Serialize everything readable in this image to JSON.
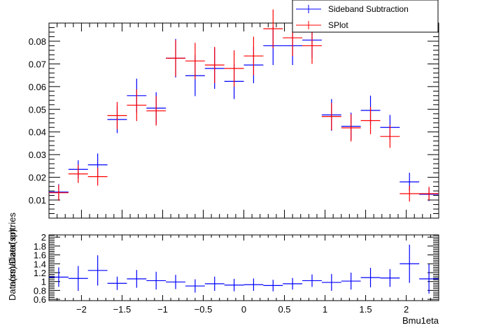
{
  "chart_data": [
    {
      "type": "scatter",
      "style": "error-bar histogram",
      "xlabel": "",
      "ylabel": "normalized entries",
      "xlim": [
        -2.4,
        2.4
      ],
      "ylim": [
        0.002,
        0.088
      ],
      "yticks_major": [
        0.01,
        0.02,
        0.03,
        0.04,
        0.05,
        0.06,
        0.07,
        0.08
      ],
      "ytick_labels": [
        "0.01",
        "0.02",
        "0.03",
        "0.04",
        "0.05",
        "0.06",
        "0.07",
        "0.08"
      ],
      "grid": false,
      "legend": {
        "placement": "top-right",
        "entries": [
          "Sideband Subtraction",
          "SPlot"
        ]
      },
      "bin_edges": [
        -2.4,
        -2.16,
        -1.92,
        -1.68,
        -1.44,
        -1.2,
        -0.96,
        -0.72,
        -0.48,
        -0.24,
        0.0,
        0.24,
        0.48,
        0.72,
        0.96,
        1.2,
        1.44,
        1.68,
        1.92,
        2.16,
        2.4
      ],
      "series": [
        {
          "name": "Sideband Subtraction",
          "color": "#0000ff",
          "values": [
            0.0135,
            0.0235,
            0.0255,
            0.0455,
            0.056,
            0.0505,
            0.0725,
            0.0648,
            0.068,
            0.0623,
            0.0695,
            0.078,
            0.078,
            0.0805,
            0.0475,
            0.0425,
            0.0495,
            0.042,
            0.018,
            0.0125
          ],
          "errors": [
            0.0035,
            0.004,
            0.005,
            0.006,
            0.0075,
            0.007,
            0.0085,
            0.009,
            0.009,
            0.0078,
            0.008,
            0.0085,
            0.0085,
            0.008,
            0.007,
            0.006,
            0.0065,
            0.0055,
            0.004,
            0.003
          ]
        },
        {
          "name": "SPlot",
          "color": "#ff0000",
          "values": [
            0.0132,
            0.0215,
            0.0203,
            0.0472,
            0.0518,
            0.0493,
            0.0725,
            0.0713,
            0.0695,
            0.068,
            0.0735,
            0.0855,
            0.0815,
            0.078,
            0.0468,
            0.0418,
            0.045,
            0.038,
            0.0128,
            0.0128
          ],
          "errors": [
            0.0035,
            0.004,
            0.004,
            0.006,
            0.007,
            0.0065,
            0.008,
            0.008,
            0.008,
            0.008,
            0.0085,
            0.0085,
            0.008,
            0.008,
            0.006,
            0.006,
            0.006,
            0.005,
            0.0035,
            0.003
          ]
        }
      ]
    },
    {
      "type": "scatter",
      "style": "error-bar ratio",
      "xlabel": "Bmu1eta",
      "ylabel": "Data(ss)/Data(sp)",
      "xlim": [
        -2.4,
        2.4
      ],
      "ylim": [
        0.57,
        2.05
      ],
      "xticks_major": [
        -2,
        -1.5,
        -1,
        -0.5,
        0,
        0.5,
        1,
        1.5,
        2
      ],
      "xtick_labels": [
        "−2",
        "−1.5",
        "−1",
        "−0.5",
        "0",
        "0.5",
        "1",
        "1.5",
        "2"
      ],
      "yticks_major": [
        0.6,
        0.8,
        1,
        1.2,
        1.4,
        1.6,
        1.8,
        2
      ],
      "ytick_labels": [
        "0.6",
        "0.8",
        "1",
        "1.2",
        "1.4",
        "1.6",
        "1.8",
        "2"
      ],
      "grid": false,
      "series": [
        {
          "name": "",
          "color": "#0000ff",
          "values": [
            1.1,
            1.07,
            1.25,
            0.96,
            1.06,
            1.02,
            0.99,
            0.9,
            0.95,
            0.92,
            0.93,
            0.91,
            0.95,
            1.02,
            0.98,
            1.01,
            1.09,
            1.08,
            1.4,
            1.06
          ],
          "errors": [
            0.22,
            0.28,
            0.34,
            0.15,
            0.2,
            0.2,
            0.16,
            0.15,
            0.16,
            0.14,
            0.14,
            0.13,
            0.13,
            0.14,
            0.19,
            0.19,
            0.22,
            0.2,
            0.43,
            0.33
          ]
        }
      ]
    }
  ]
}
